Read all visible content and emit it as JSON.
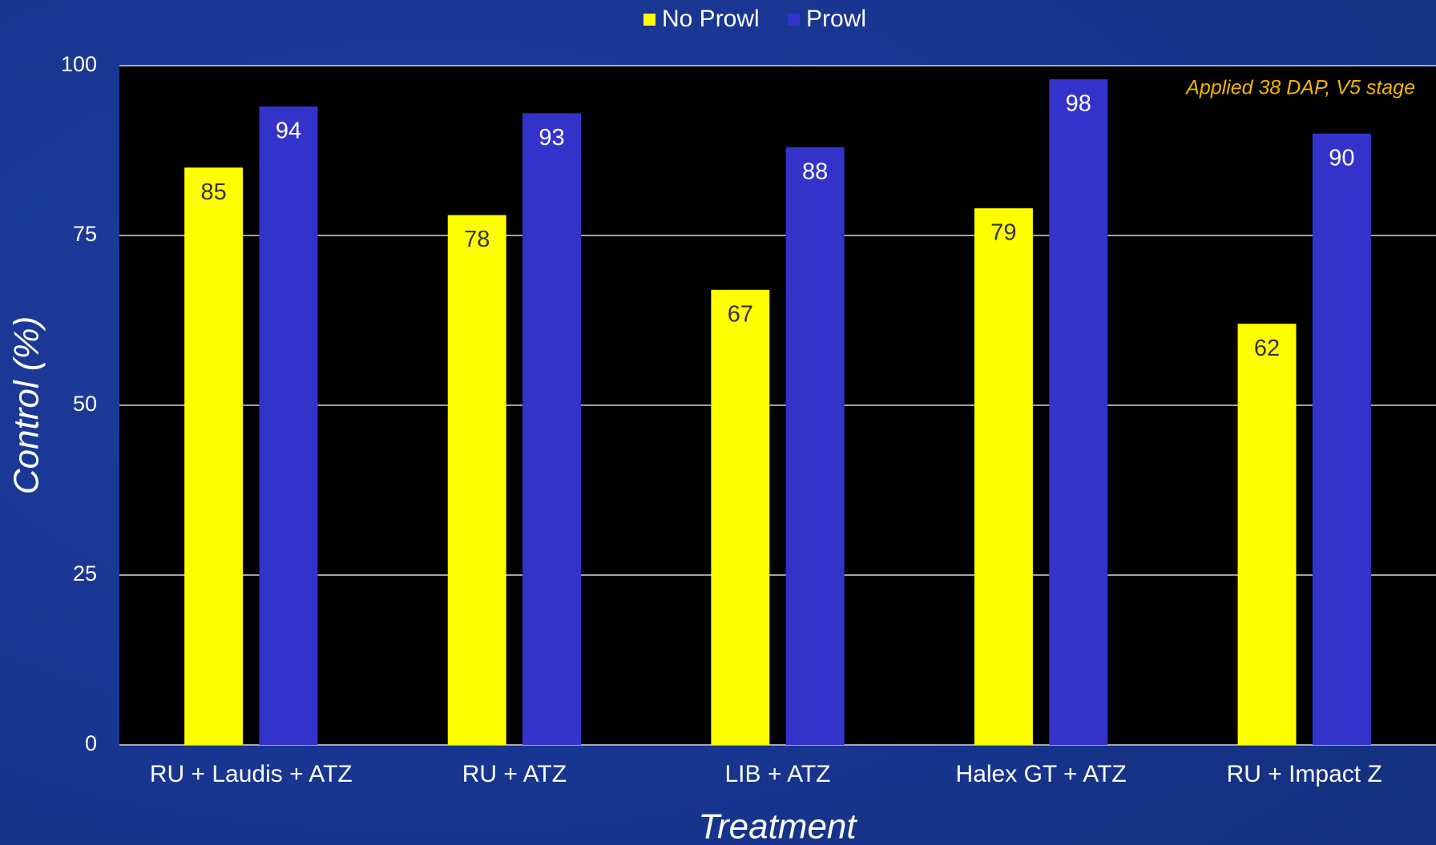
{
  "chart_data": {
    "type": "bar",
    "x_label": "Treatment",
    "y_label": "Control (%)",
    "annotation": "Applied 38 DAP, V5 stage",
    "categories": [
      "RU + Laudis + ATZ",
      "RU + ATZ",
      "LIB + ATZ",
      "Halex GT + ATZ",
      "RU + Impact Z"
    ],
    "series": [
      {
        "name": "No Prowl",
        "color": "#ffff00",
        "values": [
          85,
          78,
          67,
          79,
          62
        ]
      },
      {
        "name": "Prowl",
        "color": "#3333cc",
        "values": [
          94,
          93,
          88,
          98,
          90
        ]
      }
    ],
    "ylim": [
      0,
      100
    ],
    "yticks": [
      0,
      25,
      50,
      75,
      100
    ],
    "grid": true,
    "legend": "top"
  }
}
